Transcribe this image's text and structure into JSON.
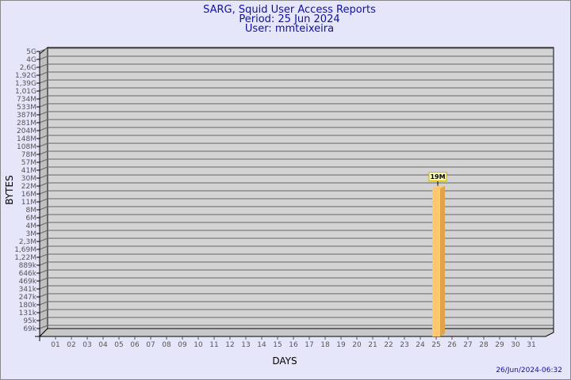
{
  "chart_data": {
    "type": "bar",
    "title": "SARG, Squid User Access Reports",
    "subtitle": [
      "Period: 25 Jun 2024",
      "User: mmteixeira"
    ],
    "xlabel": "DAYS",
    "ylabel": "BYTES",
    "yscale": "log",
    "ytick_labels": [
      "5G",
      "4G",
      "2,6G",
      "1,92G",
      "1,39G",
      "1,01G",
      "734M",
      "533M",
      "387M",
      "281M",
      "204M",
      "148M",
      "108M",
      "78M",
      "57M",
      "41M",
      "30M",
      "22M",
      "16M",
      "11M",
      "8M",
      "6M",
      "4M",
      "3M",
      "2,3M",
      "1,69M",
      "1,22M",
      "889k",
      "646k",
      "469k",
      "341k",
      "247k",
      "180k",
      "131k",
      "95k",
      "69k"
    ],
    "categories": [
      "01",
      "02",
      "03",
      "04",
      "05",
      "06",
      "07",
      "08",
      "09",
      "10",
      "11",
      "12",
      "13",
      "14",
      "15",
      "16",
      "17",
      "18",
      "19",
      "20",
      "21",
      "22",
      "23",
      "24",
      "25",
      "26",
      "27",
      "28",
      "29",
      "30",
      "31"
    ],
    "bars": [
      {
        "category": "25",
        "value": "19M",
        "label": "19M"
      }
    ],
    "grid": true,
    "colors": {
      "bar": "#ffc86e",
      "bar_side": "#e0a24a",
      "panel": "#d3d3d3",
      "grid": "#666666"
    }
  },
  "footer": {
    "timestamp": "26/Jun/2024-06:32"
  }
}
